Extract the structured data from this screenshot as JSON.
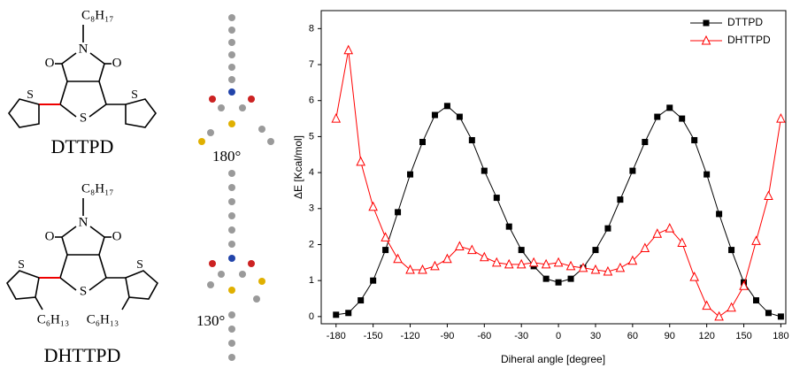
{
  "panel": {
    "molecules": [
      {
        "name": "DTTPD",
        "chain": "C₈H₁₇",
        "angle": "180°",
        "atoms": [
          "N",
          "O",
          "O",
          "S",
          "S",
          "S"
        ]
      },
      {
        "name": "DHTTPD",
        "chain": "C₈H₁₇",
        "side_chains": [
          "C₆H₁₃",
          "C₆H₁₃"
        ],
        "angle": "130°",
        "atoms": [
          "N",
          "O",
          "O",
          "S",
          "S",
          "S"
        ]
      }
    ]
  },
  "chart_data": {
    "type": "line",
    "x_label": "Diheral angle [degree]",
    "y_label": "ΔE [Kcal/mol]",
    "x": [
      -180,
      -170,
      -160,
      -150,
      -140,
      -130,
      -120,
      -110,
      -100,
      -90,
      -80,
      -70,
      -60,
      -50,
      -40,
      -30,
      -20,
      -10,
      0,
      10,
      20,
      30,
      40,
      50,
      60,
      70,
      80,
      90,
      100,
      110,
      120,
      130,
      140,
      150,
      160,
      170,
      180
    ],
    "series": [
      {
        "name": "DTTPD",
        "color": "#000000",
        "marker": "square",
        "values": [
          0.05,
          0.1,
          0.45,
          1.0,
          1.85,
          2.9,
          3.95,
          4.85,
          5.6,
          5.85,
          5.55,
          4.9,
          4.05,
          3.3,
          2.5,
          1.85,
          1.4,
          1.05,
          0.95,
          1.05,
          1.35,
          1.85,
          2.45,
          3.25,
          4.05,
          4.85,
          5.55,
          5.8,
          5.5,
          4.9,
          3.95,
          2.85,
          1.85,
          0.95,
          0.45,
          0.1,
          0.0
        ]
      },
      {
        "name": "DHTTPD",
        "color": "#ff0000",
        "marker": "triangle",
        "values": [
          5.5,
          7.4,
          4.3,
          3.05,
          2.2,
          1.6,
          1.3,
          1.3,
          1.4,
          1.6,
          1.95,
          1.85,
          1.65,
          1.5,
          1.45,
          1.45,
          1.5,
          1.45,
          1.5,
          1.4,
          1.35,
          1.3,
          1.25,
          1.35,
          1.55,
          1.9,
          2.3,
          2.45,
          2.05,
          1.1,
          0.3,
          0.0,
          0.25,
          0.85,
          2.1,
          3.35,
          5.5
        ]
      }
    ],
    "xlim": [
      -192,
      184
    ],
    "ylim": [
      -0.2,
      8.5
    ],
    "xticks": [
      -180,
      -150,
      -120,
      -90,
      -60,
      -30,
      0,
      30,
      60,
      90,
      120,
      150,
      180
    ],
    "yticks": [
      0,
      1,
      2,
      3,
      4,
      5,
      6,
      7,
      8
    ],
    "legend": "upper right"
  }
}
